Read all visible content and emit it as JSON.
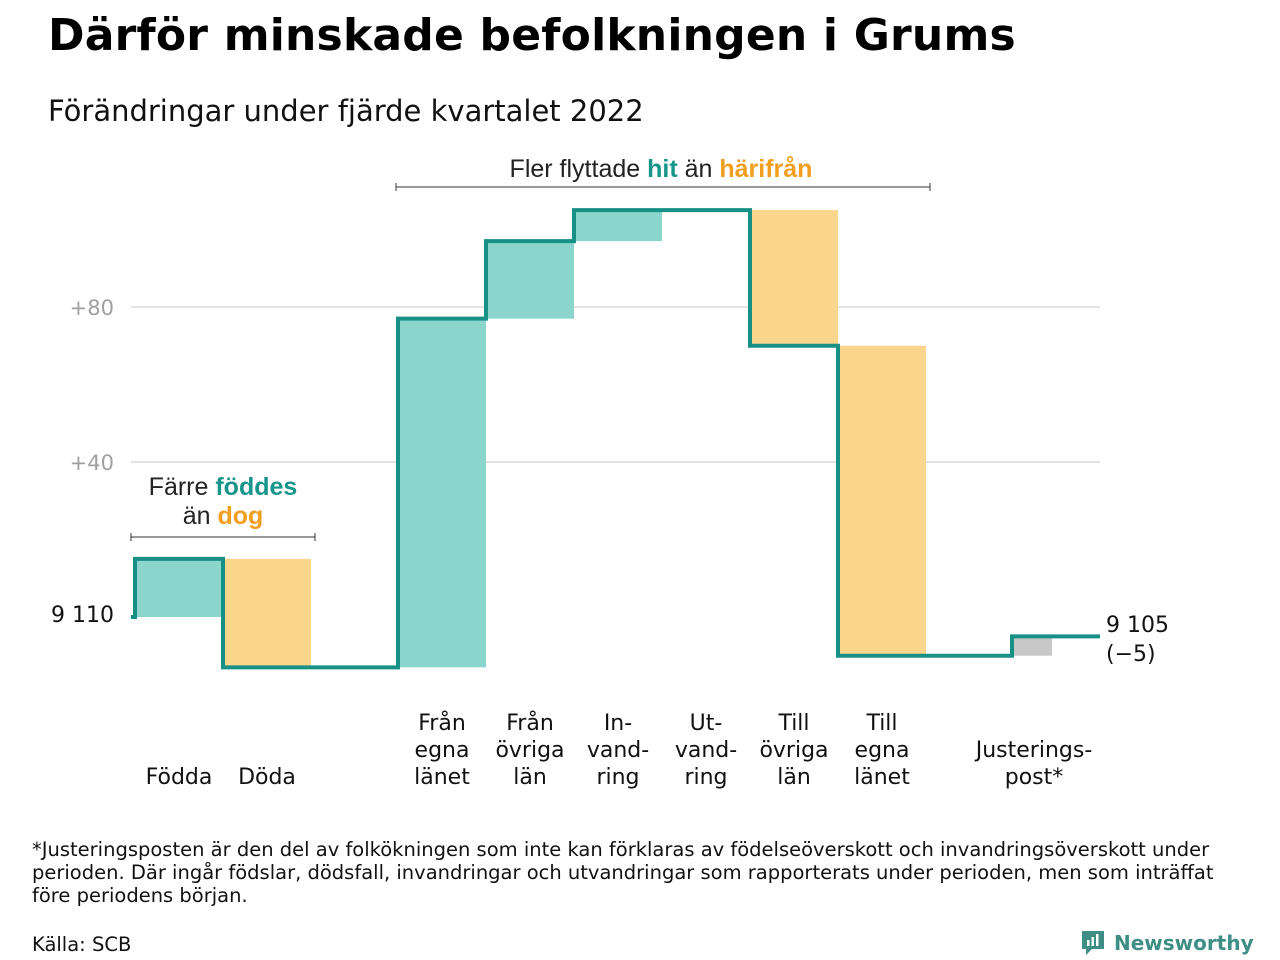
{
  "title": "Därför minskade befolkningen i Grums",
  "subtitle": "Förändringar under fjärde kvartalet 2022",
  "colors": {
    "increase": "#8cd5cd",
    "decrease": "#fad58c",
    "adjustment": "#c8c8c8",
    "line": "#179086",
    "grid": "#e3e3e3",
    "tick": "#a0a0a0",
    "hit": "#16958a",
    "harifran": "#f29e1f"
  },
  "annotations": {
    "births": {
      "prefix": "Färre ",
      "hit": "föddes",
      "line2_prefix": "än ",
      "dog": "dog"
    },
    "migration": {
      "prefix": "Fler flyttade ",
      "hit": "hit",
      "mid": " än ",
      "harifran": "härifrån"
    }
  },
  "start_label": "9 110",
  "end_label": [
    "9 105",
    "(−5)"
  ],
  "chart_data": {
    "type": "waterfall",
    "title": "Därför minskade befolkningen i Grums",
    "subtitle": "Förändringar under fjärde kvartalet 2022",
    "start_value": 9110,
    "end_value": 9105,
    "net_change": -5,
    "yticks": [
      {
        "value": 40,
        "label": "+40"
      },
      {
        "value": 80,
        "label": "+80"
      }
    ],
    "ylim": [
      -13,
      105
    ],
    "categories": [
      {
        "name": "Födda",
        "label": [
          "Födda"
        ],
        "change": 15,
        "type": "increase"
      },
      {
        "name": "Döda",
        "label": [
          "Döda"
        ],
        "change": -28,
        "type": "decrease"
      },
      {
        "name": "Från egna länet",
        "label": [
          "Från",
          "egna",
          "länet"
        ],
        "change": 90,
        "type": "increase"
      },
      {
        "name": "Från övriga län",
        "label": [
          "Från",
          "övriga",
          "län"
        ],
        "change": 20,
        "type": "increase"
      },
      {
        "name": "Invandring",
        "label": [
          "In-",
          "vand-",
          "ring"
        ],
        "change": 8,
        "type": "increase"
      },
      {
        "name": "Utvandring",
        "label": [
          "Ut-",
          "vand-",
          "ring"
        ],
        "change": 0,
        "type": "decrease"
      },
      {
        "name": "Till övriga län",
        "label": [
          "Till",
          "övriga",
          "län"
        ],
        "change": -35,
        "type": "decrease"
      },
      {
        "name": "Till egna länet",
        "label": [
          "Till",
          "egna",
          "länet"
        ],
        "change": -80,
        "type": "decrease"
      },
      {
        "name": "Justeringspost*",
        "label": [
          "Justerings-",
          "post*"
        ],
        "change": 5,
        "type": "adjustment"
      }
    ]
  },
  "footnote": "*Justeringsposten är den del av folkökningen som inte kan förklaras av födelseöverskott och invandringsöverskott under perioden. Där ingår födslar, dödsfall, invandringar och utvandringar som rapporterats under perioden, men som inträffat före periodens början.",
  "source": "Källa: SCB",
  "brand": {
    "name": "Newsworthy",
    "icon": "newsworthy-logo-icon"
  }
}
